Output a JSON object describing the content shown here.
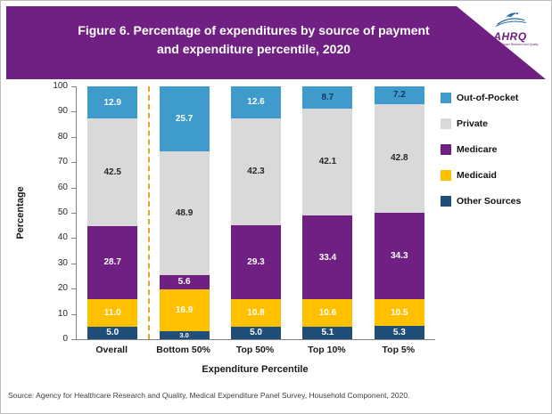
{
  "header": {
    "title_line1": "Figure 6. Percentage of expenditures by source of payment",
    "title_line2": "and expenditure percentile, 2020",
    "background_color": "#702082",
    "logo": {
      "name": "AHRQ",
      "tagline": "Agency for Healthcare Research and Quality"
    }
  },
  "chart_data": {
    "type": "bar",
    "subtype": "stacked",
    "title": "Figure 6. Percentage of expenditures by source of payment and expenditure percentile, 2020",
    "categories": [
      "Overall",
      "Bottom 50%",
      "Top 50%",
      "Top 10%",
      "Top 5%"
    ],
    "series": [
      {
        "name": "Out-of-Pocket",
        "color": "#3e9bcb",
        "values": [
          12.9,
          25.7,
          12.6,
          8.7,
          7.2
        ],
        "labels": [
          "12.9",
          "25.7",
          "12.6",
          "8.7",
          "7.2"
        ],
        "label_colors": [
          "#ffffff",
          "#ffffff",
          "#ffffff",
          "#17375e",
          "#17375e"
        ]
      },
      {
        "name": "Private",
        "color": "#d9d9d9",
        "values": [
          42.5,
          48.9,
          42.3,
          42.1,
          42.8
        ],
        "labels": [
          "42.5",
          "48.9",
          "42.3",
          "42.1",
          "42.8"
        ],
        "label_colors": [
          "#262626",
          "#262626",
          "#262626",
          "#262626",
          "#262626"
        ]
      },
      {
        "name": "Medicare",
        "color": "#702082",
        "values": [
          28.7,
          5.6,
          29.3,
          33.4,
          34.3
        ],
        "labels": [
          "28.7",
          "5.6",
          "29.3",
          "33.4",
          "34.3"
        ],
        "label_colors": [
          "#ffffff",
          "#ffffff",
          "#ffffff",
          "#ffffff",
          "#ffffff"
        ]
      },
      {
        "name": "Medicaid",
        "color": "#ffc000",
        "values": [
          11.0,
          16.9,
          10.8,
          10.6,
          10.5
        ],
        "labels": [
          "11.0",
          "16.9",
          "10.8",
          "10.6",
          "10.5"
        ],
        "label_colors": [
          "#ffffff",
          "#ffffff",
          "#ffffff",
          "#ffffff",
          "#ffffff"
        ]
      },
      {
        "name": "Other Sources",
        "color": "#1f4e79",
        "values": [
          5.0,
          3.0,
          5.0,
          5.1,
          5.3
        ],
        "labels": [
          "5.0",
          "3.0",
          "5.0",
          "5.1",
          "5.3"
        ],
        "label_colors": [
          "#ffffff",
          "#ffffff",
          "#ffffff",
          "#ffffff",
          "#ffffff"
        ]
      }
    ],
    "ylabel": "Percentage",
    "xlabel": "Expenditure Percentile",
    "ylim": [
      0,
      100
    ],
    "ytick_step": 10,
    "grid": false,
    "legend_position": "right",
    "separator": {
      "after_category": "Overall",
      "color": "#ee9f2e",
      "style": "dashed"
    }
  },
  "footer": {
    "source": "Source: Agency for Healthcare Research and Quality, Medical Expenditure Panel Survey, Household Component, 2020."
  }
}
